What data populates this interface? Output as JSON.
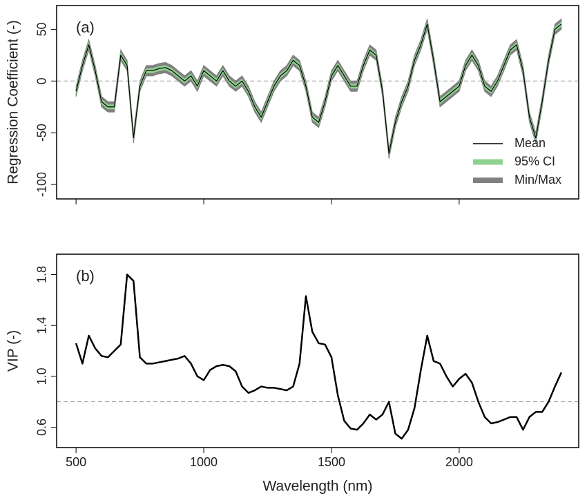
{
  "chart_data": [
    {
      "type": "line",
      "label": "(a)",
      "ylabel": "Regression Coefficient (-)",
      "x": [
        500,
        525,
        550,
        575,
        600,
        625,
        650,
        675,
        700,
        725,
        750,
        775,
        800,
        825,
        850,
        875,
        900,
        925,
        950,
        975,
        1000,
        1025,
        1050,
        1075,
        1100,
        1125,
        1150,
        1175,
        1200,
        1225,
        1250,
        1275,
        1300,
        1325,
        1350,
        1375,
        1400,
        1425,
        1450,
        1475,
        1500,
        1525,
        1550,
        1575,
        1600,
        1625,
        1650,
        1675,
        1700,
        1725,
        1750,
        1775,
        1800,
        1825,
        1850,
        1875,
        1900,
        1925,
        1950,
        1975,
        2000,
        2025,
        2050,
        2075,
        2100,
        2125,
        2150,
        2175,
        2200,
        2225,
        2250,
        2275,
        2300,
        2325,
        2350,
        2375,
        2400
      ],
      "series": [
        {
          "name": "Min/Max",
          "color": "#808080",
          "lower": [
            -15,
            10,
            30,
            5,
            -25,
            -30,
            -30,
            20,
            10,
            -60,
            -10,
            5,
            5,
            7,
            8,
            5,
            0,
            -5,
            0,
            -10,
            5,
            0,
            -5,
            5,
            -5,
            -10,
            -5,
            -15,
            -30,
            -40,
            -25,
            -10,
            0,
            5,
            15,
            10,
            -10,
            -40,
            -45,
            -25,
            0,
            10,
            0,
            -10,
            -10,
            10,
            25,
            20,
            -15,
            -75,
            -45,
            -25,
            -10,
            15,
            30,
            50,
            15,
            -25,
            -20,
            -15,
            -10,
            10,
            20,
            10,
            -10,
            -15,
            -5,
            10,
            25,
            30,
            5,
            -40,
            -60,
            -25,
            15,
            45,
            50
          ],
          "upper": [
            -5,
            20,
            40,
            15,
            -15,
            -20,
            -20,
            30,
            20,
            -50,
            0,
            15,
            15,
            17,
            18,
            15,
            10,
            5,
            10,
            0,
            15,
            10,
            5,
            15,
            5,
            0,
            5,
            -5,
            -20,
            -30,
            -15,
            0,
            10,
            15,
            25,
            20,
            0,
            -30,
            -35,
            -15,
            10,
            20,
            10,
            0,
            0,
            20,
            35,
            30,
            -5,
            -65,
            -35,
            -15,
            0,
            25,
            40,
            60,
            25,
            -15,
            -10,
            -5,
            0,
            20,
            30,
            20,
            0,
            -5,
            5,
            20,
            35,
            40,
            15,
            -30,
            -50,
            -15,
            25,
            55,
            60
          ]
        },
        {
          "name": "95% CI",
          "color": "#8fd18f",
          "lower": [
            -12,
            13,
            33,
            8,
            -22,
            -27,
            -27,
            23,
            13,
            -57,
            -7,
            8,
            8,
            10,
            11,
            8,
            3,
            -2,
            3,
            -7,
            8,
            3,
            -2,
            8,
            -2,
            -7,
            -2,
            -12,
            -27,
            -37,
            -22,
            -7,
            3,
            8,
            18,
            13,
            -7,
            -37,
            -42,
            -22,
            3,
            13,
            3,
            -7,
            -7,
            13,
            28,
            23,
            -12,
            -72,
            -42,
            -22,
            -7,
            18,
            33,
            53,
            18,
            -22,
            -17,
            -12,
            -7,
            13,
            23,
            13,
            -7,
            -12,
            -2,
            13,
            28,
            33,
            8,
            -37,
            -57,
            -22,
            18,
            48,
            53
          ],
          "upper": [
            -8,
            17,
            37,
            12,
            -18,
            -23,
            -23,
            27,
            17,
            -53,
            -3,
            12,
            12,
            14,
            15,
            12,
            7,
            2,
            7,
            -3,
            12,
            7,
            2,
            12,
            2,
            -3,
            2,
            -8,
            -23,
            -33,
            -18,
            -3,
            7,
            12,
            22,
            17,
            -3,
            -33,
            -38,
            -18,
            7,
            17,
            7,
            -3,
            -3,
            17,
            32,
            27,
            -8,
            -68,
            -38,
            -18,
            -3,
            22,
            37,
            57,
            22,
            -18,
            -13,
            -8,
            -3,
            17,
            27,
            17,
            -3,
            -8,
            2,
            17,
            32,
            37,
            12,
            -33,
            -53,
            -18,
            22,
            52,
            57
          ]
        },
        {
          "name": "Mean",
          "color": "#000000",
          "values": [
            -10,
            15,
            35,
            10,
            -20,
            -25,
            -25,
            25,
            15,
            -55,
            -5,
            10,
            10,
            12,
            13,
            10,
            5,
            0,
            5,
            -5,
            10,
            5,
            0,
            10,
            0,
            -5,
            0,
            -10,
            -25,
            -35,
            -20,
            -5,
            5,
            10,
            20,
            15,
            -5,
            -35,
            -40,
            -20,
            5,
            15,
            5,
            -5,
            -5,
            15,
            30,
            25,
            -10,
            -70,
            -40,
            -20,
            -5,
            20,
            35,
            55,
            20,
            -20,
            -15,
            -10,
            -5,
            15,
            25,
            15,
            -5,
            -10,
            0,
            15,
            30,
            35,
            10,
            -35,
            -55,
            -20,
            20,
            50,
            55
          ]
        }
      ],
      "legend_order": [
        2,
        1,
        0
      ],
      "legend": "lower right",
      "hline": 0,
      "xlim": [
        424,
        2468
      ],
      "xticks": [
        500,
        1000,
        1500,
        2000
      ],
      "ylim": [
        -114,
        73
      ],
      "yticks": [
        50,
        0,
        -50,
        -100
      ]
    },
    {
      "type": "line",
      "label": "(b)",
      "ylabel": "VIP (-)",
      "xlabel": "Wavelength (nm)",
      "x": [
        500,
        525,
        550,
        575,
        600,
        625,
        650,
        675,
        700,
        725,
        750,
        775,
        800,
        825,
        850,
        875,
        900,
        925,
        950,
        975,
        1000,
        1025,
        1050,
        1075,
        1100,
        1125,
        1150,
        1175,
        1200,
        1225,
        1250,
        1275,
        1300,
        1325,
        1350,
        1375,
        1400,
        1425,
        1450,
        1475,
        1500,
        1525,
        1550,
        1575,
        1600,
        1625,
        1650,
        1675,
        1700,
        1725,
        1750,
        1775,
        1800,
        1825,
        1850,
        1875,
        1900,
        1925,
        1950,
        1975,
        2000,
        2025,
        2050,
        2075,
        2100,
        2125,
        2150,
        2175,
        2200,
        2225,
        2250,
        2275,
        2300,
        2325,
        2350,
        2375,
        2400
      ],
      "series": [
        {
          "color": "#000000",
          "values": [
            1.26,
            1.1,
            1.32,
            1.22,
            1.16,
            1.15,
            1.2,
            1.25,
            1.8,
            1.75,
            1.15,
            1.1,
            1.1,
            1.11,
            1.12,
            1.13,
            1.14,
            1.16,
            1.1,
            1.0,
            0.97,
            1.05,
            1.08,
            1.09,
            1.08,
            1.04,
            0.92,
            0.87,
            0.89,
            0.92,
            0.91,
            0.91,
            0.9,
            0.89,
            0.92,
            1.1,
            1.63,
            1.35,
            1.26,
            1.25,
            1.15,
            0.85,
            0.65,
            0.59,
            0.58,
            0.63,
            0.7,
            0.66,
            0.7,
            0.8,
            0.55,
            0.51,
            0.58,
            0.75,
            1.05,
            1.32,
            1.12,
            1.1,
            1.0,
            0.92,
            0.98,
            1.02,
            0.95,
            0.8,
            0.68,
            0.63,
            0.64,
            0.66,
            0.68,
            0.68,
            0.58,
            0.68,
            0.72,
            0.72,
            0.8,
            0.92,
            1.03
          ]
        }
      ],
      "hline": 0.8,
      "xlim": [
        424,
        2468
      ],
      "xticks": [
        500,
        1000,
        1500,
        2000
      ],
      "ylim": [
        0.44,
        1.96
      ],
      "yticks": [
        0.6,
        {
          "value": 1,
          "label": "1.0"
        },
        1.4,
        1.8
      ]
    }
  ]
}
